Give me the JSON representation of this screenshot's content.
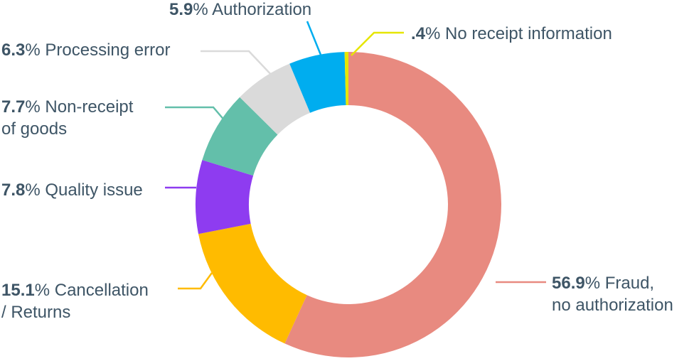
{
  "chart_data": {
    "type": "pie",
    "variant": "donut",
    "slices": [
      {
        "label": "Fraud, no authorization",
        "value": 56.9,
        "value_text": "56.9",
        "label_lines": [
          "Fraud,",
          "no authorization"
        ],
        "color": "#e88a80"
      },
      {
        "label": "Cancellation / Returns",
        "value": 15.1,
        "value_text": "15.1",
        "label_lines": [
          "Cancellation",
          "/ Returns"
        ],
        "color": "#ffbb00"
      },
      {
        "label": "Quality issue",
        "value": 7.8,
        "value_text": "7.8",
        "label_lines": [
          "Quality issue"
        ],
        "color": "#8e3cf0"
      },
      {
        "label": "Non-receipt of goods",
        "value": 7.7,
        "value_text": "7.7",
        "label_lines": [
          "Non-receipt",
          "of goods"
        ],
        "color": "#63bfaa"
      },
      {
        "label": "Processing error",
        "value": 6.3,
        "value_text": "6.3",
        "label_lines": [
          "Processing error"
        ],
        "color": "#dadada"
      },
      {
        "label": "Authorization",
        "value": 5.9,
        "value_text": "5.9",
        "label_lines": [
          "Authorization"
        ],
        "color": "#00adef"
      },
      {
        "label": "No receipt information",
        "value": 0.4,
        "value_text": ".4",
        "label_lines": [
          "No receipt information"
        ],
        "color": "#e6e600"
      }
    ],
    "unit": "%",
    "legend": "none"
  }
}
